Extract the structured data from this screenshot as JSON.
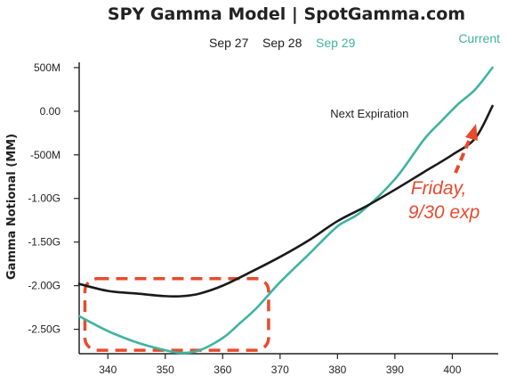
{
  "chart_data": {
    "type": "line",
    "title": "SPY Gamma Model | SpotGamma.com",
    "legend": {
      "items": [
        "Sep 27",
        "Sep 28",
        "Sep 29"
      ],
      "placement": "top-center"
    },
    "series_tag": "Current",
    "ylabel": "Gamma Notional (MM)",
    "xlabel": "",
    "xlim": [
      335,
      408
    ],
    "ylim": [
      -2780,
      560
    ],
    "x_ticks": [
      340,
      350,
      360,
      370,
      380,
      390,
      400
    ],
    "y_ticks": [
      {
        "value": 500,
        "label": "500M"
      },
      {
        "value": 0,
        "label": "0.00"
      },
      {
        "value": -500,
        "label": "-500M"
      },
      {
        "value": -1000,
        "label": "-1.00G"
      },
      {
        "value": -1500,
        "label": "-1.50G"
      },
      {
        "value": -2000,
        "label": "-2.00G"
      },
      {
        "value": -2500,
        "label": "-2.50G"
      }
    ],
    "grid": false,
    "series": [
      {
        "name": "Current",
        "color": "#3fb3a0",
        "x": [
          335,
          340,
          345,
          350,
          353,
          356,
          360,
          363,
          366,
          370,
          375,
          380,
          384,
          390,
          395,
          398,
          401,
          404,
          407
        ],
        "y": [
          -2350,
          -2520,
          -2650,
          -2740,
          -2770,
          -2740,
          -2600,
          -2430,
          -2250,
          -1960,
          -1640,
          -1320,
          -1160,
          -780,
          -330,
          -120,
          80,
          250,
          500
        ]
      },
      {
        "name": "Next Expiration",
        "color": "#1a1a1a",
        "x": [
          335,
          340,
          345,
          350,
          353,
          356,
          360,
          365,
          370,
          375,
          380,
          385,
          390,
          395,
          400,
          404,
          407
        ],
        "y": [
          -1980,
          -2060,
          -2090,
          -2120,
          -2120,
          -2090,
          -2000,
          -1840,
          -1670,
          -1480,
          -1260,
          -1090,
          -900,
          -700,
          -500,
          -310,
          60
        ]
      }
    ],
    "annotations": {
      "next_expiration": {
        "text": "Next Expiration",
        "x": 393,
        "y": -30
      },
      "callout_line1": "Friday,",
      "callout_line2": "9/30 exp",
      "callout_color": "#e84a2c"
    },
    "highlight_box": {
      "x_range": [
        336,
        368
      ],
      "y_range": [
        -2740,
        -1920
      ],
      "color": "#e84a2c"
    }
  }
}
